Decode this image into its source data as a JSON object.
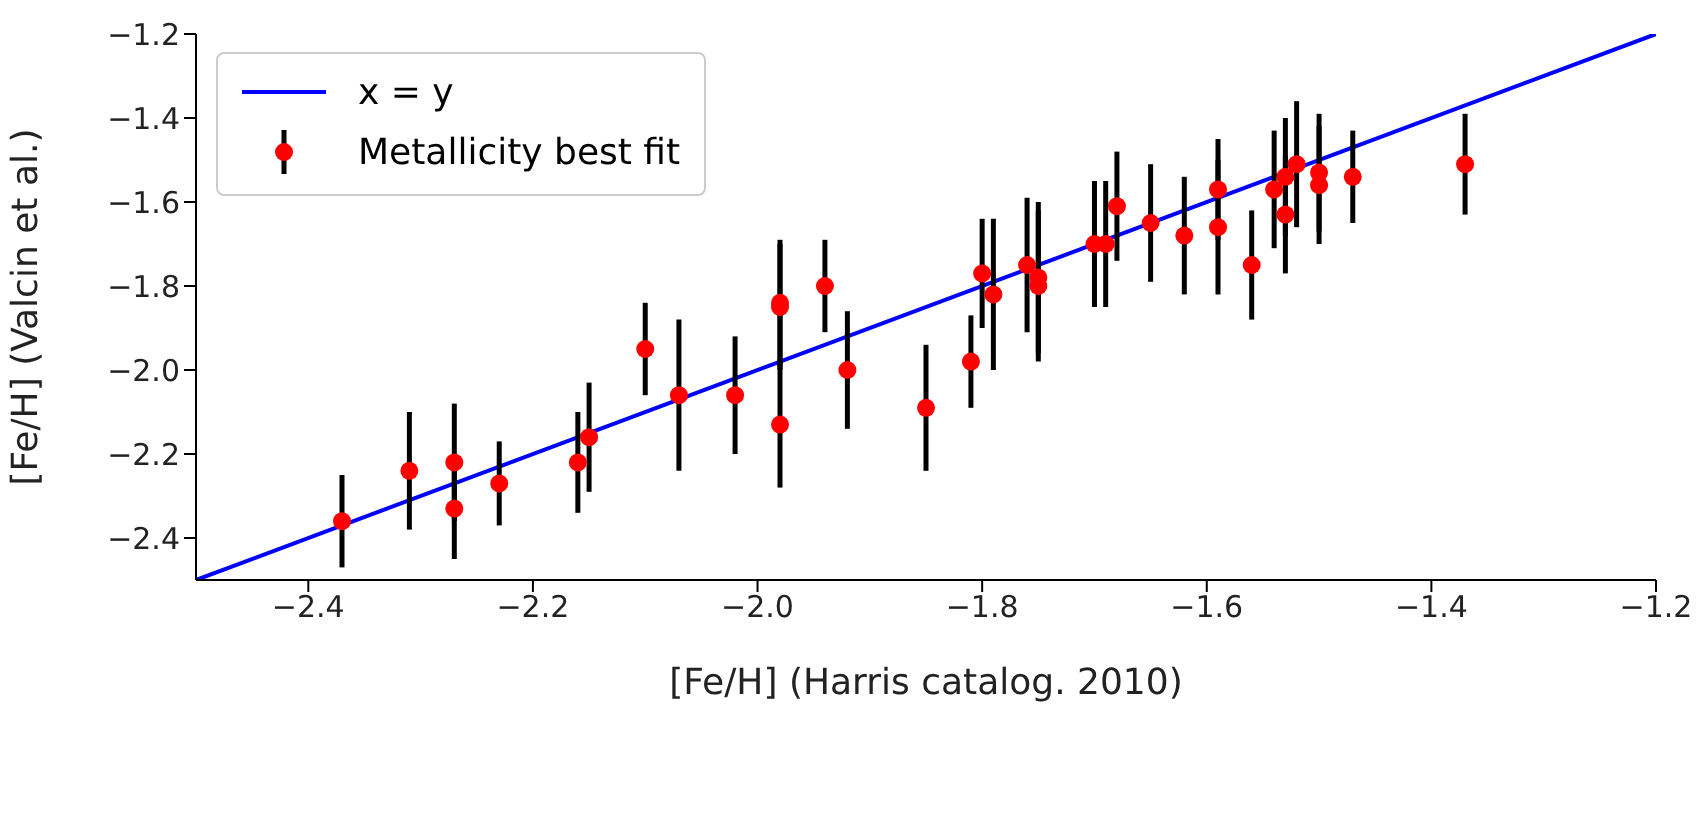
{
  "chart_data": {
    "type": "scatter",
    "xlabel": "[Fe/H] (Harris catalog. 2010)",
    "ylabel": "[Fe/H] (Valcin et al.)",
    "xlim": [
      -2.5,
      -1.2
    ],
    "xticks": [
      -2.4,
      -2.2,
      {
        "value": -2.0,
        "label": "−2.0"
      },
      -1.8,
      -1.6,
      -1.4,
      -1.2
    ],
    "ylim": [
      -2.5,
      -1.2
    ],
    "yticks": [
      -2.4,
      -2.2,
      {
        "value": -2.0,
        "label": "−2.0"
      },
      -1.8,
      -1.6,
      -1.4,
      -1.2
    ],
    "grid": false,
    "legend": "top left",
    "series": [
      {
        "name": "x = y",
        "type": "line",
        "color": "#0000ff",
        "line_style": "solid",
        "x": [
          -2.5,
          -1.2
        ],
        "values": [
          -2.5,
          -1.2
        ]
      },
      {
        "name": "Metallicity best fit",
        "color": "#ff0000",
        "marker": "circle",
        "x": [
          -2.37,
          -2.31,
          -2.27,
          -2.27,
          -2.23,
          -2.16,
          -2.15,
          -2.1,
          -2.07,
          -2.02,
          -1.98,
          -1.98,
          -1.98,
          -1.94,
          -1.92,
          -1.85,
          -1.81,
          -1.8,
          -1.79,
          -1.76,
          -1.75,
          -1.75,
          -1.7,
          -1.69,
          -1.68,
          -1.65,
          -1.62,
          -1.59,
          -1.59,
          -1.56,
          -1.54,
          -1.53,
          -1.53,
          -1.52,
          -1.5,
          -1.5,
          -1.47,
          -1.37
        ],
        "values": [
          -2.36,
          -2.24,
          -2.22,
          -2.33,
          -2.27,
          -2.22,
          -2.16,
          -1.95,
          -2.06,
          -2.06,
          -1.84,
          -1.85,
          -2.13,
          -1.8,
          -2.0,
          -2.09,
          -1.98,
          -1.77,
          -1.82,
          -1.75,
          -1.78,
          -1.8,
          -1.7,
          -1.7,
          -1.61,
          -1.65,
          -1.68,
          -1.57,
          -1.66,
          -1.75,
          -1.57,
          -1.54,
          -1.63,
          -1.51,
          -1.53,
          -1.56,
          -1.54,
          -1.51
        ],
        "errors": [
          0.11,
          0.14,
          0.14,
          0.12,
          0.1,
          0.12,
          0.13,
          0.11,
          0.18,
          0.14,
          0.15,
          0.15,
          0.15,
          0.11,
          0.14,
          0.15,
          0.11,
          0.13,
          0.18,
          0.16,
          0.18,
          0.18,
          0.15,
          0.15,
          0.13,
          0.14,
          0.14,
          0.12,
          0.16,
          0.13,
          0.14,
          0.14,
          0.14,
          0.15,
          0.14,
          0.14,
          0.11,
          0.12
        ]
      }
    ]
  }
}
